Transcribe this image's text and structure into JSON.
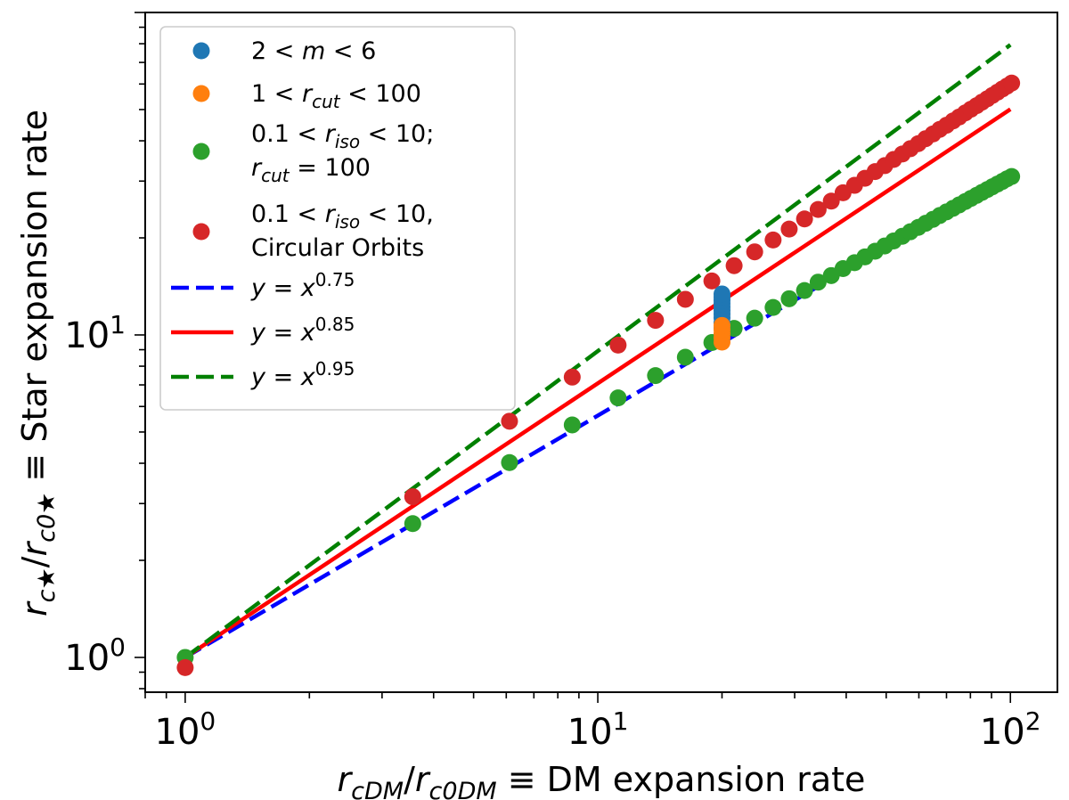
{
  "chart_data": {
    "type": "scatter",
    "title": "",
    "xlabel": "r_cDM/r_c0DM ≡  DM expansion rate",
    "ylabel": "r_c★/r_c0★ ≡  Star expansion rate",
    "xscale": "log",
    "yscale": "log",
    "xlim": [
      0.8,
      130
    ],
    "ylim": [
      0.78,
      100
    ],
    "grid": false,
    "legend_position": "upper-left",
    "x_major_ticks": [
      1,
      10,
      100
    ],
    "x_major_tick_labels": [
      {
        "base": "10",
        "exp": "0"
      },
      {
        "base": "10",
        "exp": "1"
      },
      {
        "base": "10",
        "exp": "2"
      }
    ],
    "y_major_ticks": [
      1,
      10
    ],
    "y_major_tick_labels": [
      {
        "base": "10",
        "exp": "0"
      },
      {
        "base": "10",
        "exp": "1"
      }
    ],
    "series": [
      {
        "name": "2 < m < 6",
        "kind": "points",
        "color": "#1f77b4",
        "x": [
          20,
          20,
          20,
          20,
          20,
          20,
          20,
          20,
          20,
          20
        ],
        "y": [
          10.5,
          10.9,
          11.3,
          11.6,
          11.9,
          12.2,
          12.5,
          12.8,
          13.1,
          13.4
        ]
      },
      {
        "name": "1 < r_cut < 100",
        "kind": "points",
        "color": "#ff7f0e",
        "x": [
          20,
          20,
          20,
          20,
          20
        ],
        "y": [
          9.5,
          9.8,
          10.1,
          10.4,
          10.7
        ]
      },
      {
        "name": "0.1 < r_iso < 10; r_cut = 100",
        "kind": "points",
        "color": "#2ca02c",
        "x": [
          1,
          3.56,
          6.11,
          8.67,
          11.2,
          13.8,
          16.3,
          18.9,
          21.4,
          24.0,
          26.6,
          29.1,
          31.7,
          34.2,
          36.8,
          39.3,
          41.9,
          44.4,
          47.0,
          49.6,
          52.1,
          54.7,
          57.2,
          59.8,
          62.3,
          64.9,
          67.4,
          70.0,
          72.6,
          75.1,
          77.7,
          80.2,
          82.8,
          85.3,
          87.9,
          90.4,
          93.0,
          95.6,
          98.1,
          100.7
        ],
        "y": [
          1.0,
          2.6,
          4.02,
          5.26,
          6.38,
          7.48,
          8.53,
          9.47,
          10.48,
          11.27,
          12.17,
          12.95,
          13.73,
          14.58,
          15.28,
          16.06,
          16.75,
          17.46,
          18.18,
          18.88,
          19.56,
          20.23,
          20.89,
          21.55,
          22.19,
          22.83,
          23.46,
          24.08,
          24.7,
          25.3,
          25.92,
          26.5,
          27.09,
          27.66,
          28.24,
          28.8,
          29.37,
          29.92,
          30.48,
          31.0
        ]
      },
      {
        "name": "0.1 < r_iso < 10, Circular Orbits",
        "kind": "points",
        "color": "#d62728",
        "x": [
          1,
          3.56,
          6.11,
          8.67,
          11.2,
          13.8,
          16.3,
          18.9,
          21.4,
          24.0,
          26.6,
          29.1,
          31.7,
          34.2,
          36.8,
          39.3,
          41.9,
          44.4,
          47.0,
          49.6,
          52.1,
          54.7,
          57.2,
          59.8,
          62.3,
          64.9,
          67.4,
          70.0,
          72.6,
          75.1,
          77.7,
          80.2,
          82.8,
          85.3,
          87.9,
          90.4,
          93.0,
          95.6,
          98.1,
          100.7
        ],
        "y": [
          0.93,
          3.15,
          5.4,
          7.4,
          9.3,
          11.1,
          12.9,
          14.7,
          16.4,
          18.1,
          19.7,
          21.3,
          22.9,
          24.5,
          26.0,
          27.6,
          29.1,
          30.6,
          32.1,
          33.5,
          35.0,
          36.4,
          37.8,
          39.2,
          40.6,
          42.0,
          43.4,
          44.7,
          46.1,
          47.4,
          48.8,
          50.1,
          51.4,
          52.7,
          54.0,
          55.3,
          56.6,
          57.9,
          59.1,
          60.4
        ]
      },
      {
        "name": "y = x^0.75",
        "kind": "line",
        "style": "dashed",
        "color": "#0000ff",
        "exponent": 0.75,
        "x": [
          1,
          100
        ],
        "y": [
          1,
          31.6
        ]
      },
      {
        "name": "y = x^0.85",
        "kind": "line",
        "style": "solid",
        "color": "#ff0000",
        "exponent": 0.85,
        "x": [
          1,
          100
        ],
        "y": [
          1,
          50.1
        ]
      },
      {
        "name": "y = x^0.95",
        "kind": "line",
        "style": "dashed",
        "color": "#008000",
        "exponent": 0.95,
        "x": [
          1,
          100
        ],
        "y": [
          1,
          79.4
        ]
      }
    ]
  }
}
